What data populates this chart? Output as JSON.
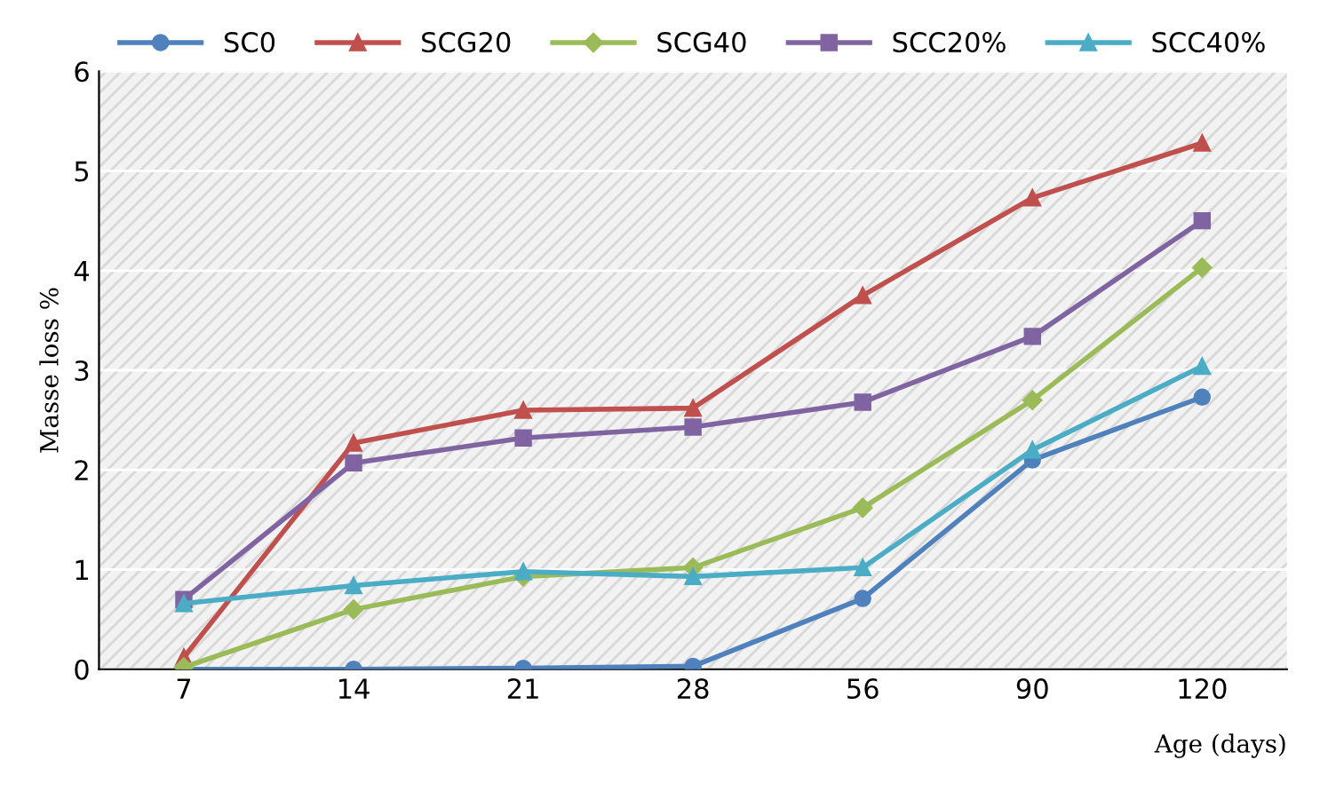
{
  "chart_data": {
    "type": "line",
    "xlabel": "Age (days)",
    "ylabel": "Masse loss %",
    "categories": [
      "7",
      "14",
      "21",
      "28",
      "56",
      "90",
      "120"
    ],
    "series": [
      {
        "name": "SC0",
        "color": "#4f81bd",
        "marker": "circle",
        "values": [
          0,
          0,
          0.01,
          0.03,
          0.71,
          2.1,
          2.73
        ]
      },
      {
        "name": "SCG20",
        "color": "#c0504d",
        "marker": "triangle",
        "values": [
          0.12,
          2.27,
          2.6,
          2.62,
          3.75,
          4.73,
          5.28
        ]
      },
      {
        "name": "SCG40",
        "color": "#9bbb59",
        "marker": "diamond",
        "values": [
          0.02,
          0.6,
          0.93,
          1.02,
          1.62,
          2.7,
          4.03
        ]
      },
      {
        "name": "SCC20%",
        "color": "#8064a2",
        "marker": "square",
        "values": [
          0.7,
          2.07,
          2.32,
          2.43,
          2.68,
          3.34,
          4.5
        ]
      },
      {
        "name": "SCC40%",
        "color": "#4bacc6",
        "marker": "triangle",
        "values": [
          0.66,
          0.84,
          0.98,
          0.93,
          1.02,
          2.2,
          3.04
        ]
      }
    ],
    "ylim": [
      0,
      6
    ],
    "yticks": [
      0,
      1,
      2,
      3,
      4,
      5,
      6
    ],
    "grid": "y",
    "legend": "top"
  }
}
